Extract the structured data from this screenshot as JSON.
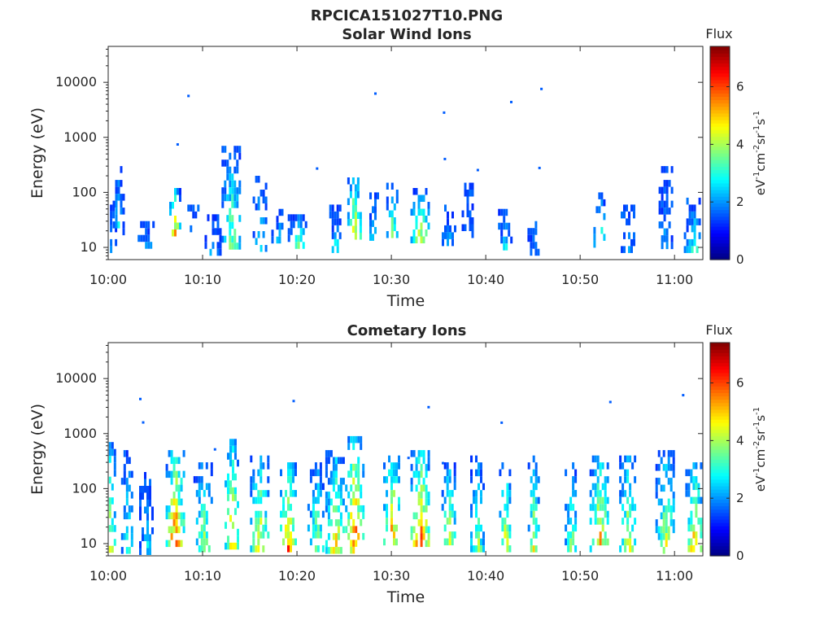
{
  "figure": {
    "title": "RPCICA151027T10.PNG"
  },
  "chart_data": [
    {
      "type": "heatmap",
      "title": "Solar Wind Ions",
      "xlabel": "Time",
      "ylabel": "Energy (eV)",
      "x_ticks": [
        "10:00",
        "10:10",
        "10:20",
        "10:30",
        "10:40",
        "10:50",
        "11:00"
      ],
      "x_range": [
        "10:00",
        "11:03"
      ],
      "y_ticks": [
        "10",
        "100",
        "1000",
        "10000"
      ],
      "y_scale": "log",
      "y_range": [
        6,
        45000
      ],
      "colorbar": {
        "title": "Flux",
        "unit_label": "eV-1cm-2sr-1s-1",
        "ticks": [
          "0",
          "2",
          "4",
          "6"
        ],
        "range": [
          0,
          7.4
        ],
        "colormap": "jet"
      },
      "bursts": [
        {
          "t": "10:00",
          "eband": [
            6,
            60
          ],
          "peak": 3.2
        },
        {
          "t": "10:01",
          "eband": [
            15,
            300
          ],
          "peak": 3.4
        },
        {
          "t": "10:04",
          "eband": [
            12,
            30
          ],
          "peak": 2.5
        },
        {
          "t": "10:07",
          "eband": [
            15,
            120
          ],
          "peak": 5.8
        },
        {
          "t": "10:09",
          "eband": [
            25,
            60
          ],
          "peak": 3.0
        },
        {
          "t": "10:11",
          "eband": [
            8,
            40
          ],
          "peak": 2.8
        },
        {
          "t": "10:13",
          "eband": [
            12,
            700
          ],
          "peak": 4.2
        },
        {
          "t": "10:16",
          "eband": [
            10,
            200
          ],
          "peak": 3.4
        },
        {
          "t": "10:18",
          "eband": [
            15,
            50
          ],
          "peak": 2.8
        },
        {
          "t": "10:20",
          "eband": [
            12,
            40
          ],
          "peak": 4.2
        },
        {
          "t": "10:24",
          "eband": [
            10,
            60
          ],
          "peak": 3.2
        },
        {
          "t": "10:26",
          "eband": [
            15,
            250
          ],
          "peak": 5.5
        },
        {
          "t": "10:28",
          "eband": [
            15,
            100
          ],
          "peak": 3.0
        },
        {
          "t": "10:30",
          "eband": [
            15,
            150
          ],
          "peak": 4.5
        },
        {
          "t": "10:33",
          "eband": [
            15,
            120
          ],
          "peak": 4.8
        },
        {
          "t": "10:36",
          "eband": [
            12,
            60
          ],
          "peak": 2.6
        },
        {
          "t": "10:38",
          "eband": [
            15,
            150
          ],
          "peak": 2.8
        },
        {
          "t": "10:42",
          "eband": [
            10,
            50
          ],
          "peak": 3.0
        },
        {
          "t": "10:45",
          "eband": [
            8,
            30
          ],
          "peak": 2.5
        },
        {
          "t": "10:52",
          "eband": [
            10,
            100
          ],
          "peak": 4.2
        },
        {
          "t": "10:55",
          "eband": [
            8,
            60
          ],
          "peak": 2.8
        },
        {
          "t": "10:59",
          "eband": [
            10,
            300
          ],
          "peak": 2.6
        },
        {
          "t": "11:02",
          "eband": [
            10,
            80
          ],
          "peak": 3.4
        }
      ]
    },
    {
      "type": "heatmap",
      "title": "Cometary Ions",
      "xlabel": "Time",
      "ylabel": "Energy (eV)",
      "x_ticks": [
        "10:00",
        "10:10",
        "10:20",
        "10:30",
        "10:40",
        "10:50",
        "11:00"
      ],
      "x_range": [
        "10:00",
        "11:03"
      ],
      "y_ticks": [
        "10",
        "100",
        "1000",
        "10000"
      ],
      "y_scale": "log",
      "y_range": [
        6,
        45000
      ],
      "colorbar": {
        "title": "Flux",
        "unit_label": "eV-1cm-2sr-1s-1",
        "ticks": [
          "0",
          "2",
          "4",
          "6"
        ],
        "range": [
          0,
          7.4
        ],
        "colormap": "jet"
      },
      "bursts": [
        {
          "t": "10:00",
          "eband": [
            6,
            700
          ],
          "peak": 5.2
        },
        {
          "t": "10:02",
          "eband": [
            8,
            500
          ],
          "peak": 3.6
        },
        {
          "t": "10:04",
          "eband": [
            6,
            200
          ],
          "peak": 3.0
        },
        {
          "t": "10:07",
          "eband": [
            10,
            500
          ],
          "peak": 6.6
        },
        {
          "t": "10:10",
          "eband": [
            6,
            300
          ],
          "peak": 4.6
        },
        {
          "t": "10:13",
          "eband": [
            8,
            800
          ],
          "peak": 5.8
        },
        {
          "t": "10:16",
          "eband": [
            6,
            400
          ],
          "peak": 5.4
        },
        {
          "t": "10:19",
          "eband": [
            8,
            300
          ],
          "peak": 6.2
        },
        {
          "t": "10:22",
          "eband": [
            8,
            300
          ],
          "peak": 4.4
        },
        {
          "t": "10:24",
          "eband": [
            8,
            500
          ],
          "peak": 5.2
        },
        {
          "t": "10:26",
          "eband": [
            8,
            900
          ],
          "peak": 6.6
        },
        {
          "t": "10:30",
          "eband": [
            10,
            400
          ],
          "peak": 6.0
        },
        {
          "t": "10:33",
          "eband": [
            10,
            500
          ],
          "peak": 6.4
        },
        {
          "t": "10:36",
          "eband": [
            10,
            300
          ],
          "peak": 5.0
        },
        {
          "t": "10:39",
          "eband": [
            8,
            400
          ],
          "peak": 4.6
        },
        {
          "t": "10:42",
          "eband": [
            8,
            300
          ],
          "peak": 5.4
        },
        {
          "t": "10:45",
          "eband": [
            6,
            400
          ],
          "peak": 5.0
        },
        {
          "t": "10:49",
          "eband": [
            8,
            300
          ],
          "peak": 4.2
        },
        {
          "t": "10:52",
          "eband": [
            8,
            400
          ],
          "peak": 5.8
        },
        {
          "t": "10:55",
          "eband": [
            6,
            400
          ],
          "peak": 5.2
        },
        {
          "t": "10:59",
          "eband": [
            8,
            500
          ],
          "peak": 4.8
        },
        {
          "t": "11:02",
          "eband": [
            6,
            300
          ],
          "peak": 5.8
        }
      ]
    }
  ]
}
